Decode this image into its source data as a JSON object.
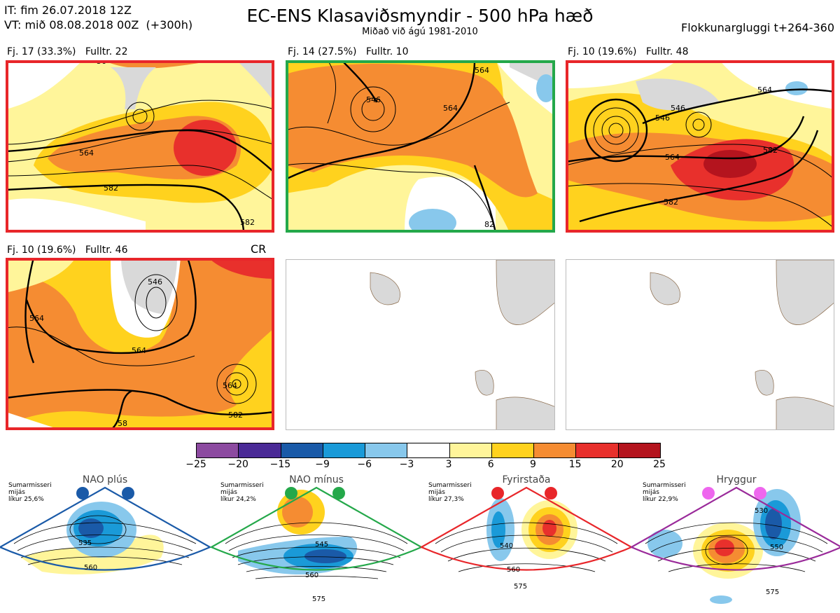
{
  "header": {
    "it": "IT: fim 26.07.2018 12Z",
    "vt": "VT: mið 08.08.2018 00Z  (+300h)",
    "title": "EC-ENS Klasaviðsmyndir - 500 hPa hæð",
    "subtitle": "Miðað við ágú 1981-2010",
    "window": "Flokkunargluggi t+264-360"
  },
  "clusters": [
    {
      "label": "Fj. 17 (33.3%)   Fulltr. 22",
      "border_color": "#e8262a",
      "contours": [
        "564",
        "582",
        "56",
        "582"
      ]
    },
    {
      "label": "Fj. 14 (27.5%)   Fulltr. 10",
      "border_color": "#24a84a",
      "contours": [
        "546",
        "564",
        "564",
        "82"
      ]
    },
    {
      "label": "Fj. 10 (19.6%)   Fulltr. 48",
      "border_color": "#e8262a",
      "contours": [
        "546",
        "546",
        "564",
        "564",
        "582",
        "582"
      ]
    },
    {
      "label": "Fj. 10 (19.6%)   Fulltr. 46",
      "border_color": "#e8262a",
      "badge": "CR",
      "contours": [
        "546",
        "564",
        "564",
        "564",
        "582",
        "58"
      ]
    }
  ],
  "colorbar": {
    "colors": [
      "#8c4aa0",
      "#4a2a96",
      "#1a5aa8",
      "#1a9ad8",
      "#88c8ec",
      "#ffffff",
      "#fff59a",
      "#ffd21e",
      "#f58c32",
      "#e8302c",
      "#b4141e"
    ],
    "ticks": [
      "−25",
      "−20",
      "−15",
      "−9",
      "−6",
      "−3",
      "3",
      "6",
      "9",
      "15",
      "20",
      "25"
    ]
  },
  "regimes": [
    {
      "name": "NAO plús",
      "note": "Sumarmisseri\nmijás\nlíkur 25,6%",
      "color": "#1a5aa8",
      "contours": [
        "535",
        "560"
      ]
    },
    {
      "name": "NAO mínus",
      "note": "Sumarmisseri\nmijás\nlíkur 24,2%",
      "color": "#24a84a",
      "contours": [
        "545",
        "560",
        "575"
      ]
    },
    {
      "name": "Fyrirstaða",
      "note": "Sumarmisseri\nmijás\nlíkur 27,3%",
      "color": "#e8262a",
      "contours": [
        "540",
        "560",
        "575"
      ]
    },
    {
      "name": "Hryggur",
      "note": "Sumarmisseri\nmijás\nlíkur 22,9%",
      "color": "#ee66ee",
      "contours": [
        "530",
        "550",
        "575"
      ]
    }
  ]
}
